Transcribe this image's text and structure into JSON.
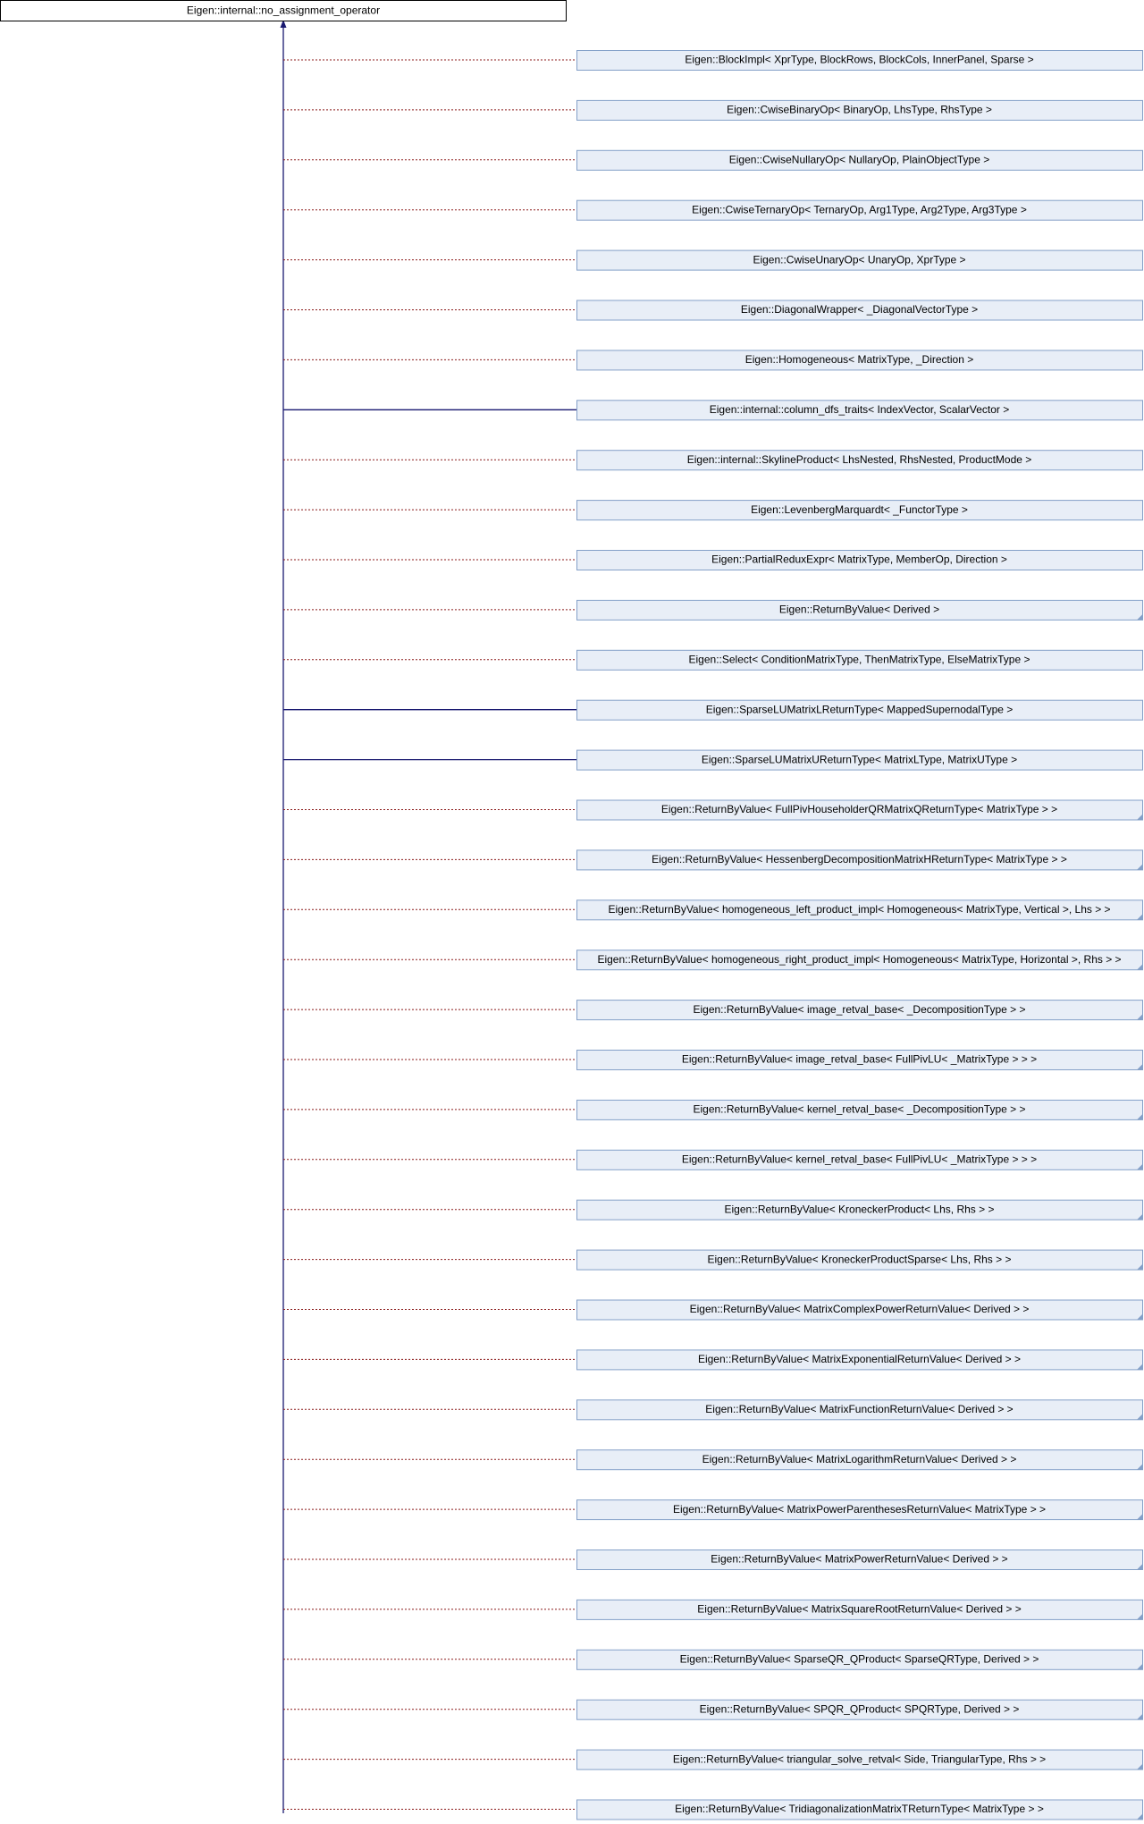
{
  "root": {
    "label": "Eigen::internal::no_assignment_operator"
  },
  "nodes": [
    {
      "label": "Eigen::BlockImpl< XprType, BlockRows, BlockCols, InnerPanel, Sparse >",
      "edge": "dotted",
      "marked": false
    },
    {
      "label": "Eigen::CwiseBinaryOp< BinaryOp, LhsType, RhsType >",
      "edge": "dotted",
      "marked": false
    },
    {
      "label": "Eigen::CwiseNullaryOp< NullaryOp, PlainObjectType >",
      "edge": "dotted",
      "marked": false
    },
    {
      "label": "Eigen::CwiseTernaryOp< TernaryOp, Arg1Type, Arg2Type, Arg3Type >",
      "edge": "dotted",
      "marked": false
    },
    {
      "label": "Eigen::CwiseUnaryOp< UnaryOp, XprType >",
      "edge": "dotted",
      "marked": false
    },
    {
      "label": "Eigen::DiagonalWrapper< _DiagonalVectorType >",
      "edge": "dotted",
      "marked": false
    },
    {
      "label": "Eigen::Homogeneous< MatrixType, _Direction >",
      "edge": "dotted",
      "marked": false
    },
    {
      "label": "Eigen::internal::column_dfs_traits< IndexVector, ScalarVector >",
      "edge": "solid",
      "marked": false
    },
    {
      "label": "Eigen::internal::SkylineProduct< LhsNested, RhsNested, ProductMode >",
      "edge": "dotted",
      "marked": false
    },
    {
      "label": "Eigen::LevenbergMarquardt< _FunctorType >",
      "edge": "dotted",
      "marked": false
    },
    {
      "label": "Eigen::PartialReduxExpr< MatrixType, MemberOp, Direction >",
      "edge": "dotted",
      "marked": false
    },
    {
      "label": "Eigen::ReturnByValue< Derived >",
      "edge": "dotted",
      "marked": true
    },
    {
      "label": "Eigen::Select< ConditionMatrixType, ThenMatrixType, ElseMatrixType >",
      "edge": "dotted",
      "marked": false
    },
    {
      "label": "Eigen::SparseLUMatrixLReturnType< MappedSupernodalType >",
      "edge": "solid",
      "marked": false
    },
    {
      "label": "Eigen::SparseLUMatrixUReturnType< MatrixLType, MatrixUType >",
      "edge": "solid",
      "marked": false
    },
    {
      "label": "Eigen::ReturnByValue< FullPivHouseholderQRMatrixQReturnType< MatrixType > >",
      "edge": "dotted",
      "marked": true
    },
    {
      "label": "Eigen::ReturnByValue< HessenbergDecompositionMatrixHReturnType< MatrixType > >",
      "edge": "dotted",
      "marked": true
    },
    {
      "label": "Eigen::ReturnByValue< homogeneous_left_product_impl< Homogeneous< MatrixType, Vertical >, Lhs > >",
      "edge": "dotted",
      "marked": true
    },
    {
      "label": "Eigen::ReturnByValue< homogeneous_right_product_impl< Homogeneous< MatrixType, Horizontal >, Rhs > >",
      "edge": "dotted",
      "marked": true
    },
    {
      "label": "Eigen::ReturnByValue< image_retval_base< _DecompositionType > >",
      "edge": "dotted",
      "marked": true
    },
    {
      "label": "Eigen::ReturnByValue< image_retval_base< FullPivLU< _MatrixType > > >",
      "edge": "dotted",
      "marked": true
    },
    {
      "label": "Eigen::ReturnByValue< kernel_retval_base< _DecompositionType > >",
      "edge": "dotted",
      "marked": true
    },
    {
      "label": "Eigen::ReturnByValue< kernel_retval_base< FullPivLU< _MatrixType > > >",
      "edge": "dotted",
      "marked": true
    },
    {
      "label": "Eigen::ReturnByValue< KroneckerProduct< Lhs, Rhs > >",
      "edge": "dotted",
      "marked": true
    },
    {
      "label": "Eigen::ReturnByValue< KroneckerProductSparse< Lhs, Rhs > >",
      "edge": "dotted",
      "marked": true
    },
    {
      "label": "Eigen::ReturnByValue< MatrixComplexPowerReturnValue< Derived > >",
      "edge": "dotted",
      "marked": true
    },
    {
      "label": "Eigen::ReturnByValue< MatrixExponentialReturnValue< Derived > >",
      "edge": "dotted",
      "marked": true
    },
    {
      "label": "Eigen::ReturnByValue< MatrixFunctionReturnValue< Derived > >",
      "edge": "dotted",
      "marked": true
    },
    {
      "label": "Eigen::ReturnByValue< MatrixLogarithmReturnValue< Derived > >",
      "edge": "dotted",
      "marked": true
    },
    {
      "label": "Eigen::ReturnByValue< MatrixPowerParenthesesReturnValue< MatrixType > >",
      "edge": "dotted",
      "marked": true
    },
    {
      "label": "Eigen::ReturnByValue< MatrixPowerReturnValue< Derived > >",
      "edge": "dotted",
      "marked": true
    },
    {
      "label": "Eigen::ReturnByValue< MatrixSquareRootReturnValue< Derived > >",
      "edge": "dotted",
      "marked": true
    },
    {
      "label": "Eigen::ReturnByValue< SparseQR_QProduct< SparseQRType, Derived > >",
      "edge": "dotted",
      "marked": true
    },
    {
      "label": "Eigen::ReturnByValue< SPQR_QProduct< SPQRType, Derived > >",
      "edge": "dotted",
      "marked": true
    },
    {
      "label": "Eigen::ReturnByValue< triangular_solve_retval< Side, TriangularType, Rhs > >",
      "edge": "dotted",
      "marked": true
    },
    {
      "label": "Eigen::ReturnByValue< TridiagonalizationMatrixTReturnType< MatrixType > >",
      "edge": "dotted",
      "marked": true
    }
  ]
}
